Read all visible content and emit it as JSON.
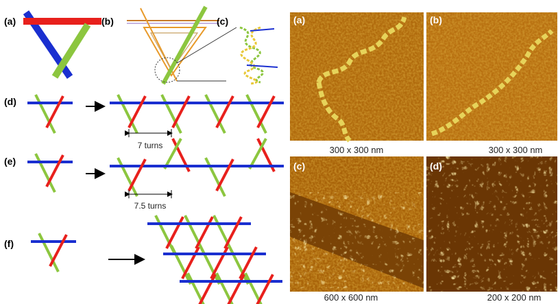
{
  "left_panels": {
    "labels": [
      "(a)",
      "(b)",
      "(c)",
      "(d)",
      "(e)",
      "(f)"
    ],
    "annotations": [
      "7 turns",
      "7.5 turns"
    ]
  },
  "afm_images": [
    {
      "label": "(a)",
      "caption": "300 x 300 nm"
    },
    {
      "label": "(b)",
      "caption": "300 x 300 nm"
    },
    {
      "label": "(c)",
      "caption": "600 x 600 nm"
    },
    {
      "label": "(d)",
      "caption": "200 x 200 nm"
    }
  ]
}
